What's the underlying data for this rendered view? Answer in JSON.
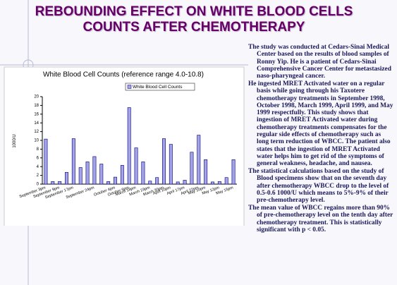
{
  "title": "REBOUNDING EFFECT ON WHITE BLOOD CELLS COUNTS AFTER CHEMOTHERAPY",
  "chart_data": {
    "type": "bar",
    "title": "White Blood Cell Counts (reference range 4.0-10.8)",
    "y_label": "1000/U",
    "categories": [
      "September 3pm",
      null,
      "September 9pm",
      null,
      "September 17pm",
      null,
      null,
      "September 24pm",
      null,
      null,
      "October 4pm",
      null,
      "October 6pm",
      "March 18pm",
      null,
      "March 23pm",
      null,
      "March 30pm",
      "April 10pm",
      null,
      "April 17pm",
      null,
      "April 22pm",
      "May 10pm",
      null,
      "May 12pm",
      null,
      "May 15pm"
    ],
    "series": [
      {
        "name": "White Blood Cell Counts",
        "color": "#a3a3e6",
        "values": [
          10.3,
          0.6,
          0.6,
          2.7,
          10.4,
          3.8,
          5.1,
          6.3,
          4.6,
          0.6,
          1.6,
          4.3,
          17.5,
          8.3,
          5.1,
          0.7,
          1.5,
          10.4,
          9.1,
          0.5,
          0.9,
          7.3,
          11.2,
          5.6,
          0.5,
          0.6,
          1.5,
          5.6
        ]
      }
    ],
    "ylim": [
      0,
      20
    ],
    "yticks": [
      0,
      2,
      4,
      6,
      8,
      10,
      12,
      14,
      16,
      18,
      20
    ],
    "grid": false,
    "legend": "top"
  },
  "body": {
    "paragraphs": [
      "The study was conducted at Cedars-Sinai Medical Center based on the results of blood samples of Ronny Yip. He is a patient of Cedars-Sinai Comprehensive Cancer Center for metastasized naso-pharyngeal cancer.",
      "He ingested MRET Activated water on a regular basis while going through his Taxotere chemotherapy treatments in September 1998, October 1998, March 1999, April 1999, and May 1999 respectfully. This study shows that ingestion of MRET Activated water during chemotherapy treatments compensates for the regular side effects of chemotherapy such as long term reduction of WBCC. The patient also states that the ingestion of MRET Activated water helps him to get rid of the symptoms of general weakness, headache, and nausea.",
      "The statistical calculations based on the study of Blood specimens show that on the seventh day after chemotherapy WBCC drop to the level of 0.5-0.6 1000/U which means to 5%-9% of their pre-chemotherapy level.",
      "The mean value of WBCC regains more than 90% of pre-chemotherapy level on the tenth day after chemotherapy treatment.  This is statistically significant with p < 0.05."
    ]
  }
}
